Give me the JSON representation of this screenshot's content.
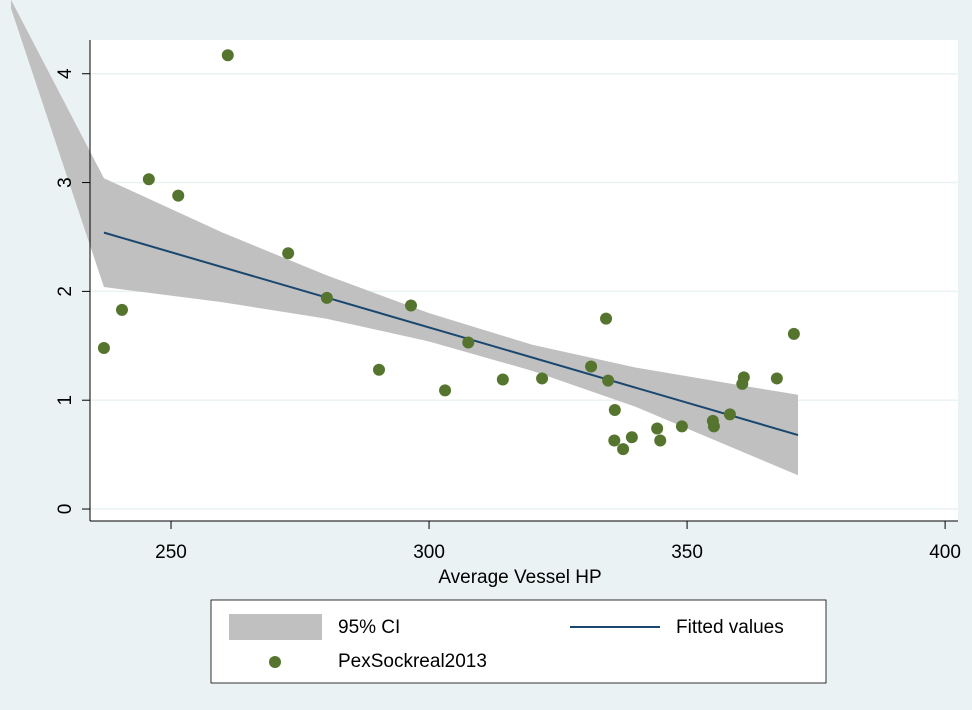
{
  "chart_data": {
    "type": "scatter",
    "xlabel": "Average Vessel HP",
    "xlim": [
      234.3,
      402.5
    ],
    "xticks": [
      250,
      300,
      350,
      400
    ],
    "ylim": [
      -0.11,
      4.31
    ],
    "yticks": [
      0,
      1,
      2,
      3,
      4
    ],
    "grid": true,
    "legend": "bottom",
    "ci": {
      "name": "95% CI",
      "color": "#c0c0c0",
      "x": [
        219,
        237,
        260,
        280,
        300,
        320,
        340,
        360,
        371.5
      ],
      "upper": [
        4.68,
        3.04,
        2.54,
        2.15,
        1.8,
        1.51,
        1.3,
        1.14,
        1.05
      ],
      "lower": [
        4.6,
        2.04,
        1.9,
        1.75,
        1.54,
        1.27,
        0.94,
        0.54,
        0.31
      ]
    },
    "fit": {
      "name": "Fitted values",
      "color": "#1a476f",
      "x": [
        237,
        371.5
      ],
      "values": [
        2.54,
        0.68
      ]
    },
    "points": {
      "name": "PexSockreal2013",
      "color": "#55752f",
      "x": [
        237.0,
        240.5,
        245.7,
        251.4,
        261.0,
        272.7,
        280.2,
        290.3,
        296.5,
        303.1,
        307.6,
        314.3,
        321.9,
        331.4,
        334.3,
        334.7,
        336.0,
        335.9,
        337.6,
        339.3,
        344.2,
        344.8,
        349.0,
        355.0,
        355.2,
        358.3,
        360.7,
        361.0,
        367.4,
        370.7
      ],
      "values": [
        1.48,
        1.83,
        3.03,
        2.88,
        4.17,
        2.35,
        1.94,
        1.28,
        1.87,
        1.09,
        1.53,
        1.19,
        1.2,
        1.31,
        1.75,
        1.18,
        0.91,
        0.63,
        0.55,
        0.66,
        0.74,
        0.63,
        0.76,
        0.81,
        0.76,
        0.87,
        1.15,
        1.21,
        1.2,
        1.61
      ]
    }
  }
}
